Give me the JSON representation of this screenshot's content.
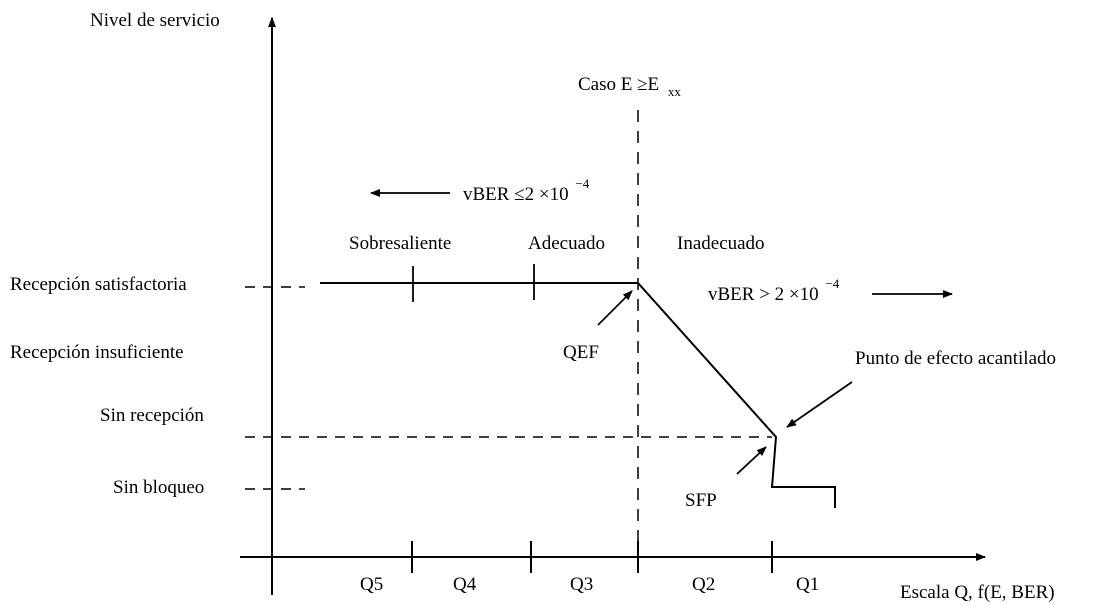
{
  "axes": {
    "y_label": "Nivel de servicio",
    "x_label": "Escala Q, f(E, BER)"
  },
  "levels": [
    "Recepción satisfactoria",
    "Recepción insuficiente",
    "Sin recepción",
    "Sin bloqueo"
  ],
  "quality_grades": [
    "Q5",
    "Q4",
    "Q3",
    "Q2",
    "Q1"
  ],
  "regions": {
    "excellent": "Sobresaliente",
    "adequate": "Adecuado",
    "inadequate": "Inadecuado"
  },
  "case_label": {
    "main": "Caso E ≥E",
    "subscript": "xx"
  },
  "ber_left": {
    "main": "vBER ≤2 ×10",
    "exponent": "−4"
  },
  "ber_right": {
    "main": "vBER > 2 ×10",
    "exponent": "−4"
  },
  "points": {
    "qef": "QEF",
    "sfp": "SFP",
    "cliff": "Punto de efecto acantilado"
  }
}
